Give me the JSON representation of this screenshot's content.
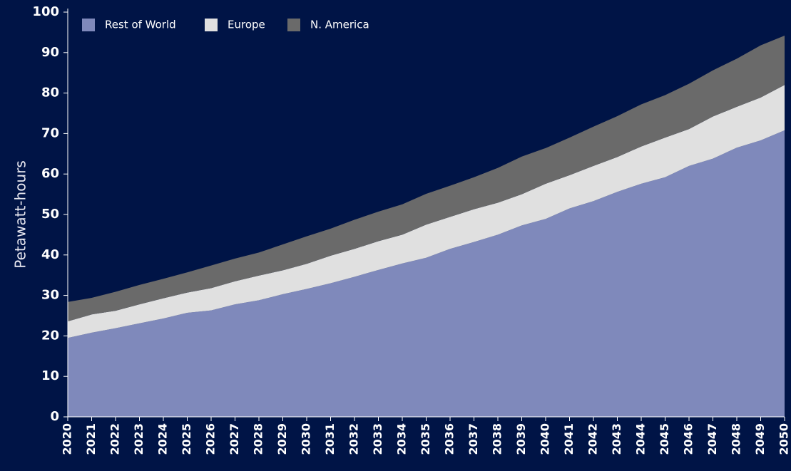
{
  "chart_data": {
    "type": "area",
    "stacked": true,
    "y_label": "Petawatt-hours",
    "categories": [
      "2020",
      "2021",
      "2022",
      "2023",
      "2024",
      "2025",
      "2026",
      "2027",
      "2028",
      "2029",
      "2030",
      "2031",
      "2032",
      "2033",
      "2034",
      "2035",
      "2036",
      "2037",
      "2038",
      "2039",
      "2040",
      "2041",
      "2042",
      "2043",
      "2044",
      "2045",
      "2046",
      "2047",
      "2048",
      "2049",
      "2050"
    ],
    "series": [
      {
        "name": "Rest of World",
        "color": "#7f89bb",
        "values": [
          19.5,
          20.8,
          21.9,
          23.1,
          24.3,
          25.7,
          26.3,
          27.8,
          28.8,
          30.3,
          31.6,
          33.0,
          34.6,
          36.3,
          37.9,
          39.3,
          41.5,
          43.2,
          45.0,
          47.3,
          48.9,
          51.5,
          53.3,
          55.6,
          57.6,
          59.2,
          62.0,
          63.8,
          66.5,
          68.3,
          70.8
        ]
      },
      {
        "name": "Europe",
        "color": "#e0e0e0",
        "values": [
          4.1,
          4.5,
          4.3,
          4.7,
          5.0,
          5.0,
          5.5,
          5.7,
          6.1,
          5.9,
          6.2,
          6.8,
          6.9,
          7.1,
          7.1,
          8.2,
          7.9,
          8.1,
          7.9,
          7.7,
          8.7,
          8.2,
          8.7,
          8.6,
          9.2,
          9.8,
          9.1,
          10.4,
          10.1,
          10.6,
          11.2
        ]
      },
      {
        "name": "N. America",
        "color": "#6a6a6a",
        "values": [
          4.8,
          4.1,
          4.7,
          4.8,
          4.8,
          5.0,
          5.6,
          5.6,
          5.7,
          6.4,
          6.8,
          6.7,
          7.2,
          7.3,
          7.5,
          7.6,
          7.7,
          7.9,
          8.6,
          9.3,
          8.8,
          9.3,
          9.7,
          10.1,
          10.4,
          10.5,
          11.2,
          11.4,
          11.9,
          12.9,
          12.2
        ]
      }
    ],
    "ylim": [
      0,
      100
    ],
    "yticks": [
      0,
      10,
      20,
      30,
      40,
      50,
      60,
      70,
      80,
      90,
      100
    ],
    "legend": "top-left",
    "background": "#001446"
  }
}
